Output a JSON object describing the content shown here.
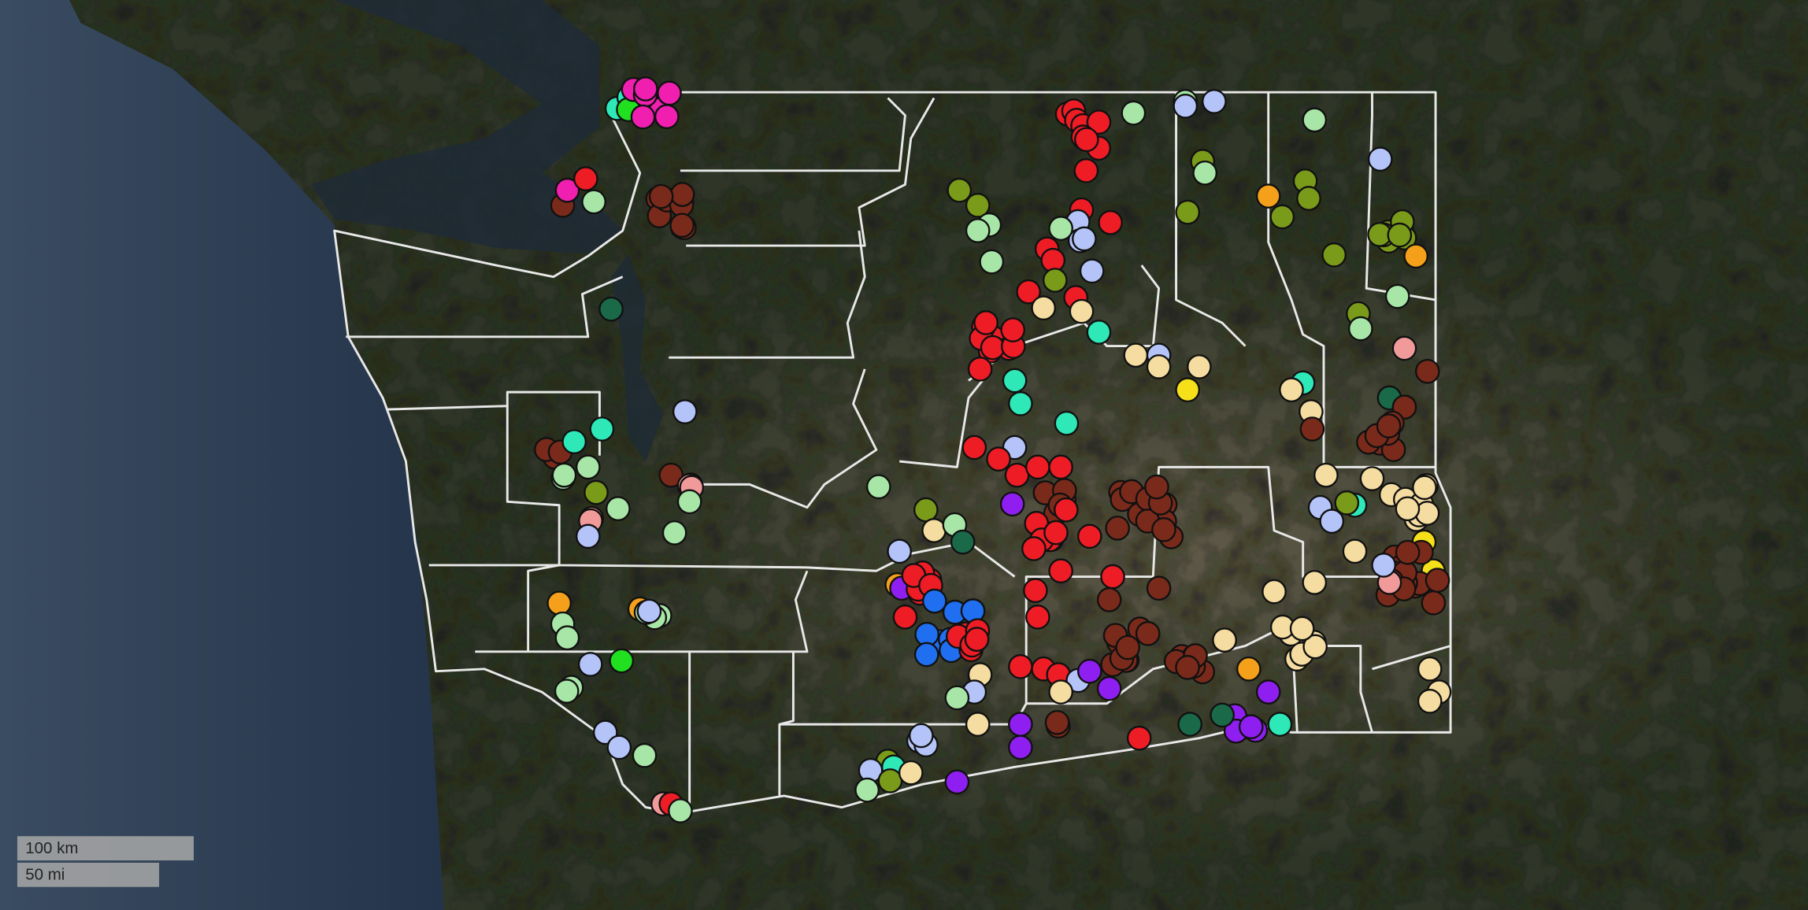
{
  "scale_bar": {
    "metric": "100 km",
    "imperial": "50 mi"
  }
}
